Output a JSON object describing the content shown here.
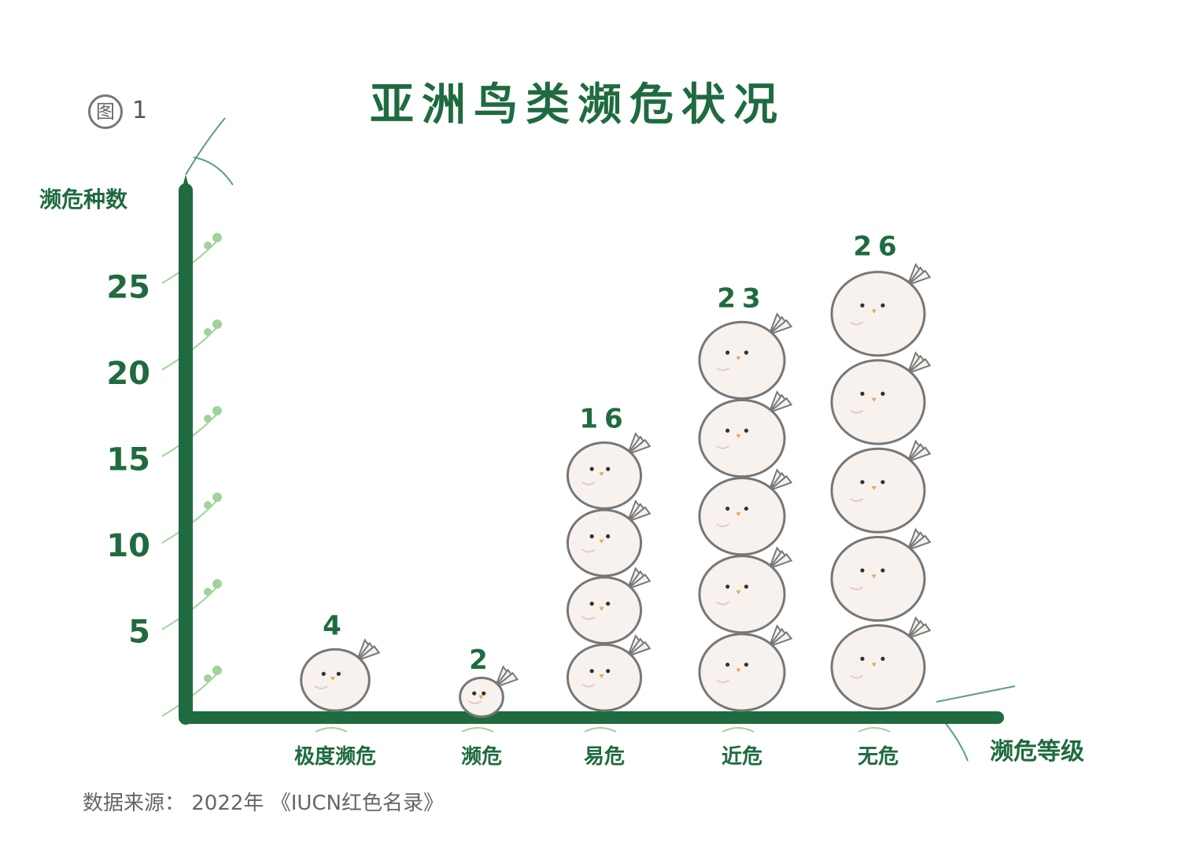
{
  "title": "亚洲鸟类濒危状况",
  "figure_label": {
    "circle": "图",
    "number": "1"
  },
  "source": "数据来源： 2022年 《IUCN红色名录》",
  "colors": {
    "axis": "#1f6b3f",
    "text": "#1f6b3f",
    "bird_fill": "#f8f2ee",
    "bird_stroke": "#777777",
    "vine": "#9fd39a"
  },
  "chart_data": {
    "type": "bar",
    "title": "亚洲鸟类濒危状况",
    "xlabel": "濒危等级",
    "ylabel": "濒危种数",
    "ylim": [
      0,
      30
    ],
    "yticks": [
      5,
      10,
      15,
      20,
      25
    ],
    "categories": [
      "极度濒危",
      "濒危",
      "易危",
      "近危",
      "无危"
    ],
    "values": [
      4,
      2,
      16,
      23,
      26
    ],
    "grid": false
  }
}
